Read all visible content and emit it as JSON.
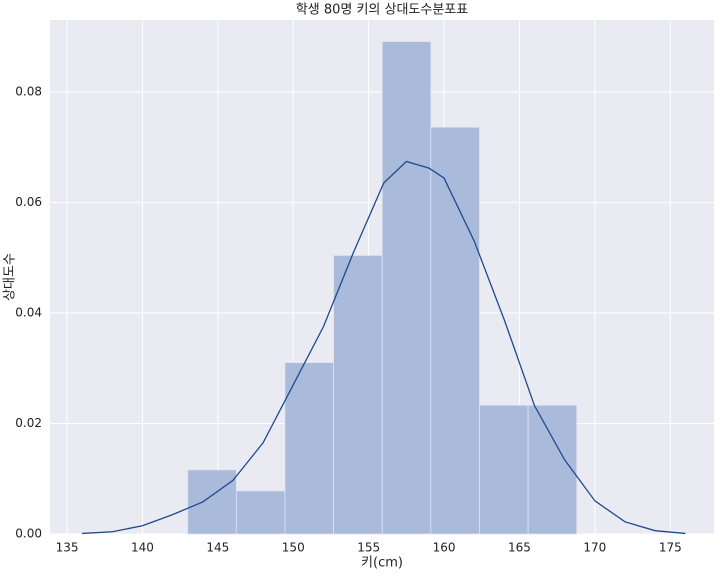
{
  "chart_data": {
    "type": "histogram",
    "title": "학생 80명 키의 상대도수분포표",
    "x_label": "키(cm)",
    "y_label": "상대도수",
    "bins": [
      143.0,
      146.225,
      149.45,
      152.675,
      155.9,
      159.125,
      162.35,
      165.575,
      168.8
    ],
    "values": [
      0.0116,
      0.0078,
      0.031,
      0.0504,
      0.0891,
      0.0736,
      0.0233,
      0.0233
    ],
    "color": "#a9badb",
    "line": {
      "type": "line",
      "color": "#1f4a8c",
      "x": [
        136,
        138,
        140,
        142,
        144,
        146,
        148,
        150,
        152,
        154,
        156,
        157.5,
        159,
        160,
        162,
        164,
        166,
        168,
        170,
        172,
        174,
        176
      ],
      "values": [
        0.0001,
        0.0004,
        0.0015,
        0.0035,
        0.0058,
        0.0097,
        0.0165,
        0.027,
        0.0375,
        0.051,
        0.0635,
        0.0674,
        0.0662,
        0.0644,
        0.053,
        0.0387,
        0.0232,
        0.0134,
        0.006,
        0.0022,
        0.0006,
        0.0001
      ]
    },
    "xlim": [
      133.87,
      177.9
    ],
    "ylim": [
      0,
      0.093
    ],
    "xticks": [
      135,
      140,
      145,
      150,
      155,
      160,
      165,
      170,
      175
    ],
    "yticks": [
      {
        "value": 0,
        "label": "0.00"
      },
      {
        "value": 0.02,
        "label": "0.02"
      },
      {
        "value": 0.04,
        "label": "0.04"
      },
      {
        "value": 0.06,
        "label": "0.06"
      },
      {
        "value": 0.08,
        "label": "0.08"
      }
    ],
    "grid": true
  }
}
